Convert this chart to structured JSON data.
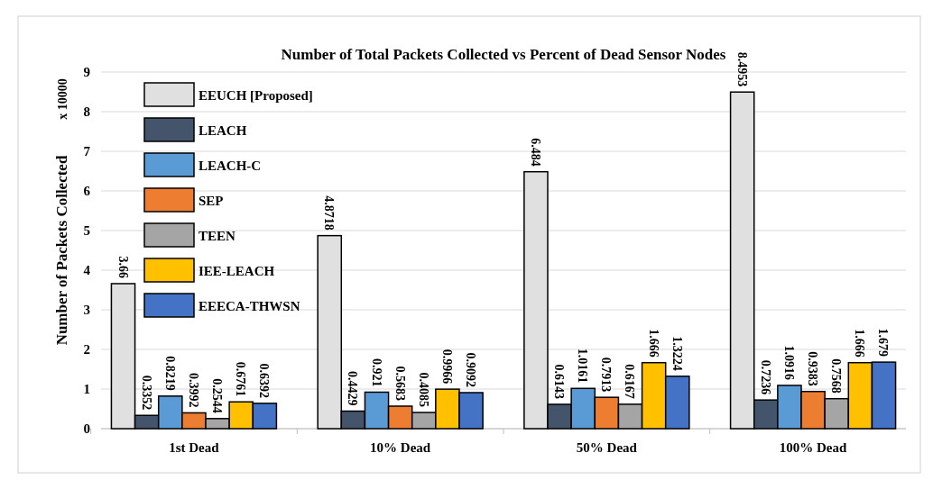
{
  "chart_data": {
    "type": "bar",
    "title": "Number of Total Packets Collected vs Percent of Dead Sensor Nodes",
    "ylabel": "Number of Packets Collected",
    "annotations": [
      "x 10000"
    ],
    "categories": [
      "1st Dead",
      "10% Dead",
      "50% Dead",
      "100% Dead"
    ],
    "series": [
      {
        "name": "EEUCH [Proposed]",
        "color": "#e0e0e0",
        "values": [
          3.66,
          4.8718,
          6.484,
          8.4953
        ]
      },
      {
        "name": "LEACH",
        "color": "#44546a",
        "values": [
          0.3352,
          0.4429,
          0.6143,
          0.7236
        ]
      },
      {
        "name": "LEACH-C",
        "color": "#5b9bd5",
        "values": [
          0.8219,
          0.921,
          1.0161,
          1.0916
        ]
      },
      {
        "name": "SEP",
        "color": "#ed7d31",
        "values": [
          0.3992,
          0.5683,
          0.7913,
          0.9383
        ]
      },
      {
        "name": "TEEN",
        "color": "#a5a5a5",
        "values": [
          0.2544,
          0.4085,
          0.6167,
          0.7568
        ]
      },
      {
        "name": "IEE-LEACH",
        "color": "#ffc000",
        "values": [
          0.6761,
          0.9966,
          1.666,
          1.666
        ]
      },
      {
        "name": "EEECA-THWSN",
        "color": "#4472c4",
        "values": [
          0.6392,
          0.9092,
          1.3224,
          1.679
        ]
      }
    ],
    "ylim": [
      0,
      9
    ],
    "yticks": [
      0,
      1,
      2,
      3,
      4,
      5,
      6,
      7,
      8,
      9
    ],
    "grid": "y",
    "legend": "top left",
    "data_labels": true
  }
}
